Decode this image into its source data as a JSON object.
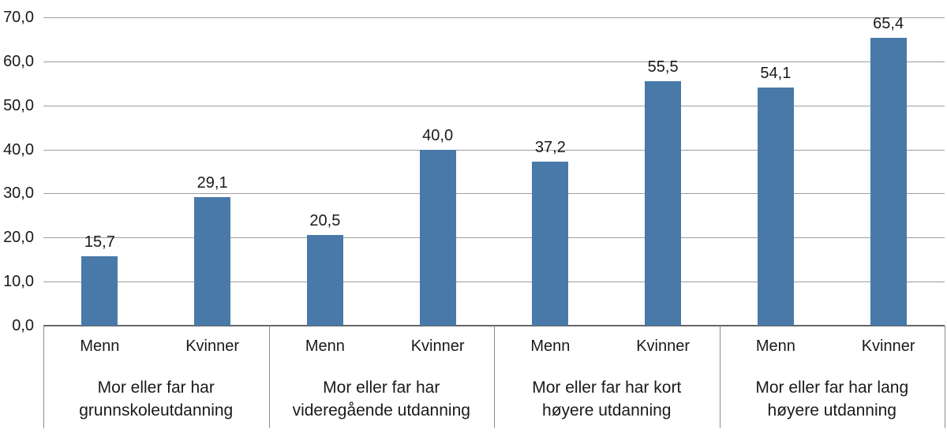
{
  "chart_data": {
    "type": "bar",
    "title": "",
    "xlabel": "",
    "ylabel": "",
    "categories": [
      "Mor eller far har grunnskoleutdanning",
      "Mor eller far har videregående utdanning",
      "Mor eller far har kort høyere utdanning",
      "Mor eller far har lang høyere utdanning"
    ],
    "category_lines": [
      [
        "Mor eller far har",
        "grunnskoleutdanning"
      ],
      [
        "Mor eller far har",
        "videregående utdanning"
      ],
      [
        "Mor eller far har kort",
        "høyere utdanning"
      ],
      [
        "Mor eller far har lang",
        "høyere utdanning"
      ]
    ],
    "series": [
      {
        "name": "Menn",
        "values": [
          15.7,
          20.5,
          37.2,
          54.1
        ]
      },
      {
        "name": "Kvinner",
        "values": [
          29.1,
          40.0,
          55.5,
          65.4
        ]
      }
    ],
    "value_labels": [
      [
        "15,7",
        "20,5",
        "37,2",
        "54,1"
      ],
      [
        "29,1",
        "40,0",
        "55,5",
        "65,4"
      ]
    ],
    "ylim": [
      0,
      70
    ],
    "ytick_step": 10,
    "ytick_labels": [
      "0,0",
      "10,0",
      "20,0",
      "30,0",
      "40,0",
      "50,0",
      "60,0",
      "70,0"
    ],
    "decimal_separator": ",",
    "grid": "horizontal",
    "legend": "none",
    "colors": {
      "bar": "#4879A9",
      "gridline": "#9E9E9E",
      "axis_line": "#666666",
      "separator": "#8C8C8C",
      "text": "#1A1A1A",
      "background": "#FFFFFF"
    }
  }
}
